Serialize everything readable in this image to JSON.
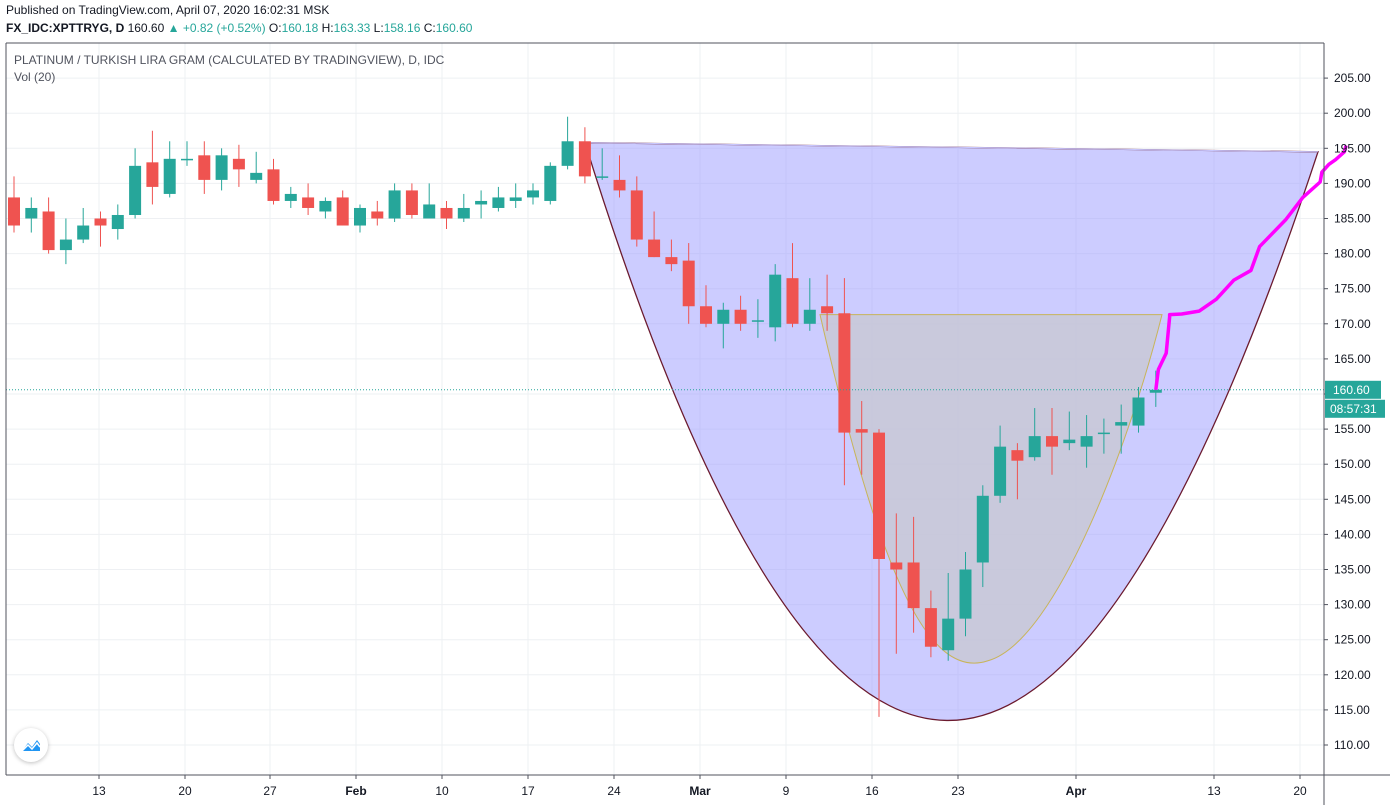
{
  "header": {
    "published": "Published on TradingView.com, April 07, 2020 16:02:31 MSK",
    "symbol": "FX_IDC:XPTTRYG, D",
    "last": "160.60",
    "change": "▲ +0.82 (+0.52%)",
    "o_label": "O:",
    "o_value": "160.18",
    "h_label": "H:",
    "h_value": "163.33",
    "l_label": "L:",
    "l_value": "158.16",
    "c_label": "C:",
    "c_value": "160.60"
  },
  "legend": {
    "title": "PLATINUM / TURKISH LIRA GRAM (CALCULATED BY TRADINGVIEW), D, IDC",
    "indicator": "Vol (20)"
  },
  "colors": {
    "up": "#26a69a",
    "down": "#ef5350",
    "big_cup_fill": "#9999ff",
    "big_cup_stroke": "#6b1a2e",
    "small_cup_fill": "#c8c8d0",
    "small_cup_stroke": "#c8b45a",
    "projection": "#ff00ff",
    "price_line": "#26a69a"
  },
  "chart_data": {
    "type": "candlestick",
    "y_axis": {
      "min": 107,
      "max": 208,
      "ticks": [
        110,
        115,
        120,
        125,
        130,
        135,
        140,
        145,
        150,
        155,
        160,
        165,
        170,
        175,
        180,
        185,
        190,
        195,
        200,
        205
      ]
    },
    "x_ticks": [
      "13",
      "20",
      "27",
      "Feb",
      "10",
      "17",
      "24",
      "Mar",
      "9",
      "16",
      "23",
      "Apr",
      "13",
      "20"
    ],
    "last_price_label": "160.60",
    "countdown_label": "08:57:31",
    "candles": [
      {
        "o": 188.0,
        "h": 191.0,
        "l": 183.0,
        "c": 184.0
      },
      {
        "o": 185.0,
        "h": 188.0,
        "l": 183.0,
        "c": 186.5
      },
      {
        "o": 186.0,
        "h": 188.0,
        "l": 180.0,
        "c": 180.5
      },
      {
        "o": 180.5,
        "h": 185.0,
        "l": 178.5,
        "c": 182.0
      },
      {
        "o": 182.0,
        "h": 186.5,
        "l": 181.5,
        "c": 184.0
      },
      {
        "o": 185.0,
        "h": 186.0,
        "l": 181.0,
        "c": 184.0
      },
      {
        "o": 183.5,
        "h": 187.0,
        "l": 182.0,
        "c": 185.5
      },
      {
        "o": 185.5,
        "h": 195.0,
        "l": 185.0,
        "c": 192.5
      },
      {
        "o": 193.0,
        "h": 197.5,
        "l": 187.0,
        "c": 189.5
      },
      {
        "o": 188.5,
        "h": 196.0,
        "l": 188.0,
        "c": 193.5
      },
      {
        "o": 193.5,
        "h": 196.0,
        "l": 192.5,
        "c": 193.5
      },
      {
        "o": 194.0,
        "h": 196.0,
        "l": 188.5,
        "c": 190.5
      },
      {
        "o": 190.5,
        "h": 195.0,
        "l": 189.0,
        "c": 194.0
      },
      {
        "o": 193.5,
        "h": 195.5,
        "l": 189.5,
        "c": 192.0
      },
      {
        "o": 190.5,
        "h": 194.5,
        "l": 190.0,
        "c": 191.5
      },
      {
        "o": 192.0,
        "h": 193.5,
        "l": 187.0,
        "c": 187.5
      },
      {
        "o": 187.5,
        "h": 189.5,
        "l": 186.5,
        "c": 188.5
      },
      {
        "o": 188.0,
        "h": 190.0,
        "l": 185.5,
        "c": 186.5
      },
      {
        "o": 186.0,
        "h": 188.0,
        "l": 185.0,
        "c": 187.5
      },
      {
        "o": 188.0,
        "h": 189.0,
        "l": 184.0,
        "c": 184.0
      },
      {
        "o": 184.0,
        "h": 187.0,
        "l": 183.0,
        "c": 186.5
      },
      {
        "o": 186.0,
        "h": 187.5,
        "l": 184.0,
        "c": 185.0
      },
      {
        "o": 185.0,
        "h": 190.0,
        "l": 184.5,
        "c": 189.0
      },
      {
        "o": 189.0,
        "h": 190.0,
        "l": 185.0,
        "c": 185.5
      },
      {
        "o": 185.0,
        "h": 190.0,
        "l": 185.0,
        "c": 187.0
      },
      {
        "o": 186.5,
        "h": 187.5,
        "l": 183.5,
        "c": 185.0
      },
      {
        "o": 185.0,
        "h": 188.5,
        "l": 184.5,
        "c": 186.5
      },
      {
        "o": 187.0,
        "h": 189.0,
        "l": 185.0,
        "c": 187.5
      },
      {
        "o": 186.5,
        "h": 189.5,
        "l": 186.0,
        "c": 188.0
      },
      {
        "o": 187.5,
        "h": 190.0,
        "l": 186.5,
        "c": 188.0
      },
      {
        "o": 188.0,
        "h": 190.0,
        "l": 187.0,
        "c": 189.0
      },
      {
        "o": 187.5,
        "h": 193.0,
        "l": 187.0,
        "c": 192.5
      },
      {
        "o": 192.5,
        "h": 199.5,
        "l": 192.0,
        "c": 196.0
      },
      {
        "o": 196.0,
        "h": 198.0,
        "l": 190.0,
        "c": 191.0
      },
      {
        "o": 191.0,
        "h": 195.0,
        "l": 190.5,
        "c": 191.0
      },
      {
        "o": 190.5,
        "h": 194.0,
        "l": 188.0,
        "c": 189.0
      },
      {
        "o": 189.0,
        "h": 191.0,
        "l": 181.0,
        "c": 182.0
      },
      {
        "o": 182.0,
        "h": 186.0,
        "l": 179.5,
        "c": 179.5
      },
      {
        "o": 179.5,
        "h": 182.0,
        "l": 177.5,
        "c": 178.5
      },
      {
        "o": 179.0,
        "h": 181.5,
        "l": 170.0,
        "c": 172.5
      },
      {
        "o": 172.5,
        "h": 175.5,
        "l": 169.5,
        "c": 170.0
      },
      {
        "o": 170.0,
        "h": 173.0,
        "l": 166.5,
        "c": 172.0
      },
      {
        "o": 172.0,
        "h": 174.0,
        "l": 169.0,
        "c": 170.0
      },
      {
        "o": 170.5,
        "h": 173.5,
        "l": 168.0,
        "c": 170.5
      },
      {
        "o": 169.5,
        "h": 178.5,
        "l": 167.5,
        "c": 177.0
      },
      {
        "o": 176.5,
        "h": 181.5,
        "l": 169.5,
        "c": 170.0
      },
      {
        "o": 170.0,
        "h": 176.5,
        "l": 169.0,
        "c": 172.0
      },
      {
        "o": 172.5,
        "h": 177.0,
        "l": 169.0,
        "c": 171.5
      },
      {
        "o": 171.5,
        "h": 176.5,
        "l": 147.0,
        "c": 154.5
      },
      {
        "o": 155.0,
        "h": 159.0,
        "l": 148.5,
        "c": 154.5
      },
      {
        "o": 154.5,
        "h": 155.0,
        "l": 114.0,
        "c": 136.5
      },
      {
        "o": 136.0,
        "h": 143.0,
        "l": 123.0,
        "c": 135.0
      },
      {
        "o": 136.0,
        "h": 142.5,
        "l": 126.0,
        "c": 129.5
      },
      {
        "o": 129.5,
        "h": 132.0,
        "l": 122.5,
        "c": 124.0
      },
      {
        "o": 123.5,
        "h": 134.5,
        "l": 122.0,
        "c": 128.0
      },
      {
        "o": 128.0,
        "h": 137.5,
        "l": 125.5,
        "c": 135.0
      },
      {
        "o": 136.0,
        "h": 147.0,
        "l": 132.5,
        "c": 145.5
      },
      {
        "o": 145.5,
        "h": 155.5,
        "l": 144.5,
        "c": 152.5
      },
      {
        "o": 152.0,
        "h": 153.0,
        "l": 145.0,
        "c": 150.5
      },
      {
        "o": 151.0,
        "h": 158.0,
        "l": 150.5,
        "c": 154.0
      },
      {
        "o": 154.0,
        "h": 158.0,
        "l": 148.5,
        "c": 152.5
      },
      {
        "o": 153.0,
        "h": 157.5,
        "l": 152.0,
        "c": 153.5
      },
      {
        "o": 152.5,
        "h": 157.0,
        "l": 149.5,
        "c": 154.0
      },
      {
        "o": 154.5,
        "h": 156.5,
        "l": 151.5,
        "c": 154.5
      },
      {
        "o": 155.5,
        "h": 158.5,
        "l": 151.5,
        "c": 156.0
      },
      {
        "o": 155.5,
        "h": 161.0,
        "l": 154.5,
        "c": 159.5
      },
      {
        "o": 160.18,
        "h": 163.33,
        "l": 158.16,
        "c": 160.6
      }
    ],
    "big_cup": {
      "top_left": 195.8,
      "top_right": 194.5,
      "bottom": 113.5
    },
    "small_cup": {
      "top": 171.3,
      "bottom": 122.0
    },
    "projection_path": [
      [
        0,
        160.6
      ],
      [
        0.15,
        163.5
      ],
      [
        0.6,
        165.8
      ],
      [
        0.8,
        171.0
      ],
      [
        0.8,
        171.3
      ],
      [
        1.5,
        171.4
      ],
      [
        2.5,
        171.8
      ],
      [
        3.5,
        173.5
      ],
      [
        4.5,
        176.2
      ],
      [
        5.5,
        177.6
      ],
      [
        6.0,
        181.0
      ],
      [
        7.5,
        184.8
      ],
      [
        8.5,
        188.0
      ],
      [
        9.5,
        190.2
      ],
      [
        9.6,
        191.6
      ],
      [
        10.0,
        192.7
      ],
      [
        10.4,
        193.4
      ],
      [
        10.9,
        194.5
      ],
      [
        11.0,
        195.4
      ]
    ]
  }
}
